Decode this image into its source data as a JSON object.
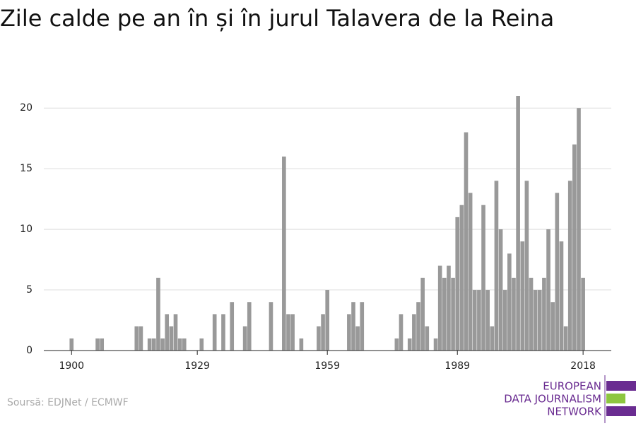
{
  "chart_data": {
    "type": "bar",
    "title": "Zile calde pe an în și în jurul Talavera de la Reina",
    "source": "Soursă: EDJNet / ECMWF",
    "logo": [
      "EUROPEAN",
      "DATA JOURNALISM",
      "NETWORK"
    ],
    "color": "#999999",
    "x": [
      1900,
      1906,
      1907,
      1915,
      1916,
      1918,
      1919,
      1920,
      1921,
      1922,
      1923,
      1924,
      1925,
      1926,
      1930,
      1933,
      1935,
      1937,
      1940,
      1941,
      1946,
      1949,
      1950,
      1951,
      1953,
      1957,
      1958,
      1959,
      1964,
      1965,
      1966,
      1967,
      1975,
      1976,
      1978,
      1979,
      1980,
      1981,
      1982,
      1984,
      1985,
      1986,
      1987,
      1988,
      1989,
      1990,
      1991,
      1992,
      1993,
      1994,
      1995,
      1996,
      1997,
      1998,
      1999,
      2000,
      2001,
      2002,
      2003,
      2004,
      2005,
      2006,
      2007,
      2008,
      2009,
      2010,
      2011,
      2012,
      2013,
      2014,
      2015,
      2016,
      2017,
      2018
    ],
    "values": [
      1,
      1,
      1,
      2,
      2,
      1,
      1,
      6,
      1,
      3,
      2,
      3,
      1,
      1,
      1,
      3,
      3,
      4,
      2,
      4,
      4,
      16,
      3,
      3,
      1,
      2,
      3,
      5,
      3,
      4,
      2,
      4,
      1,
      3,
      1,
      3,
      4,
      6,
      2,
      1,
      7,
      6,
      7,
      6,
      11,
      12,
      18,
      13,
      5,
      5,
      12,
      5,
      2,
      14,
      10,
      5,
      8,
      6,
      21,
      9,
      14,
      6,
      5,
      5,
      6,
      10,
      4,
      13,
      9,
      2,
      14,
      17,
      20,
      6
    ],
    "xlim": [
      1893.6,
      2024.5
    ],
    "xticks": [
      1900,
      1929,
      1959,
      1989,
      2018
    ],
    "ylim": [
      0,
      21
    ],
    "yticks": [
      0,
      5,
      10,
      15,
      20
    ],
    "grid": true
  }
}
